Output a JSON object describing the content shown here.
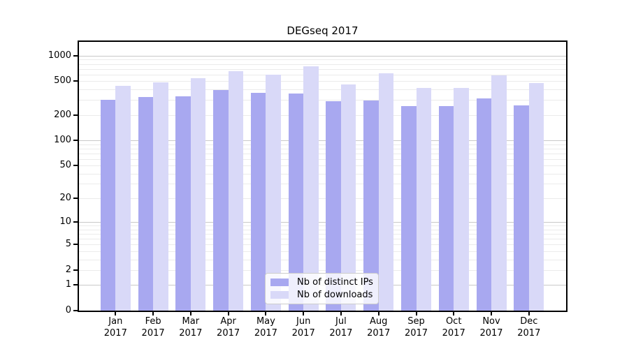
{
  "chart_data": {
    "type": "bar",
    "title": "DEGseq 2017",
    "categories": [
      "Jan",
      "Feb",
      "Mar",
      "Apr",
      "May",
      "Jun",
      "Jul",
      "Aug",
      "Sep",
      "Oct",
      "Nov",
      "Dec"
    ],
    "year_label": "2017",
    "series": [
      {
        "name": "Nb of distinct IPs",
        "color": "#a8a8f0",
        "values": [
          301,
          323,
          333,
          395,
          366,
          360,
          290,
          294,
          253,
          255,
          313,
          259
        ]
      },
      {
        "name": "Nb of downloads",
        "color": "#d9d9f8",
        "values": [
          440,
          486,
          545,
          659,
          596,
          744,
          460,
          616,
          416,
          418,
          588,
          475
        ]
      }
    ],
    "yscale": "log10(value+1)",
    "yticks": [
      1000,
      500,
      200,
      100,
      50,
      20,
      10,
      5,
      2,
      1,
      0
    ],
    "ylim": [
      0,
      1450
    ],
    "xlabel": "",
    "ylabel": "",
    "grid": "horizontal major+minor",
    "legend_position": "bottom-center",
    "colors": {
      "bar_distinct_ips": "#a8a8f0",
      "bar_downloads": "#d9d9f8",
      "major_grid": "#c8c8c8",
      "minor_grid": "#ebebeb",
      "axis": "#000000",
      "text": "#000000",
      "background": "#ffffff",
      "legend_border": "#cccccc"
    }
  }
}
